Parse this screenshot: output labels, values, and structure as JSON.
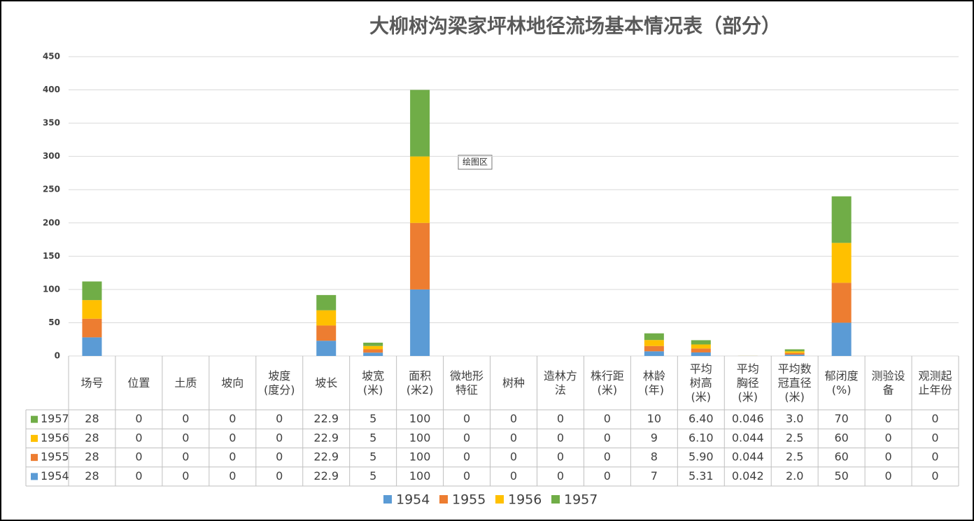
{
  "chart_data": {
    "type": "bar",
    "stacked": true,
    "title": "大柳树沟梁家坪林地径流场基本情况表（部分）",
    "annotation": "绘图区",
    "categories": [
      "场号",
      "位置",
      "土质",
      "坡向",
      "坡度\n(度分)",
      "坡长",
      "坡宽\n(米)",
      "面积\n(米2)",
      "微地形\n特征",
      "树种",
      "造林方\n法",
      "株行距\n(米)",
      "林龄\n(年)",
      "平均\n树高\n(米)",
      "平均\n胸径\n(米)",
      "平均数\n冠直径\n(米)",
      "郁闭度\n(%)",
      "测验设\n备",
      "观测起\n止年份"
    ],
    "series": [
      {
        "name": "1954",
        "color": "#5b9bd5",
        "values": [
          28,
          0,
          0,
          0,
          0,
          22.9,
          5,
          100,
          0,
          0,
          0,
          0,
          7,
          5.31,
          0.042,
          2,
          50,
          0,
          0
        ],
        "value_labels": [
          "28",
          "0",
          "0",
          "0",
          "0",
          "22.9",
          "5",
          "100",
          "0",
          "0",
          "0",
          "0",
          "7",
          "5.31",
          "0.042",
          "2.0",
          "50",
          "0",
          "0"
        ]
      },
      {
        "name": "1955",
        "color": "#ed7d31",
        "values": [
          28,
          0,
          0,
          0,
          0,
          22.9,
          5,
          100,
          0,
          0,
          0,
          0,
          8,
          5.9,
          0.044,
          2.5,
          60,
          0,
          0
        ],
        "value_labels": [
          "28",
          "0",
          "0",
          "0",
          "0",
          "22.9",
          "5",
          "100",
          "0",
          "0",
          "0",
          "0",
          "8",
          "5.90",
          "0.044",
          "2.5",
          "60",
          "0",
          "0"
        ]
      },
      {
        "name": "1956",
        "color": "#ffc000",
        "values": [
          28,
          0,
          0,
          0,
          0,
          22.9,
          5,
          100,
          0,
          0,
          0,
          0,
          9,
          6.1,
          0.044,
          2.5,
          60,
          0,
          0
        ],
        "value_labels": [
          "28",
          "0",
          "0",
          "0",
          "0",
          "22.9",
          "5",
          "100",
          "0",
          "0",
          "0",
          "0",
          "9",
          "6.10",
          "0.044",
          "2.5",
          "60",
          "0",
          "0"
        ]
      },
      {
        "name": "1957",
        "color": "#70ad47",
        "values": [
          28,
          0,
          0,
          0,
          0,
          22.9,
          5,
          100,
          0,
          0,
          0,
          0,
          10,
          6.4,
          0.046,
          3,
          70,
          0,
          0
        ],
        "value_labels": [
          "28",
          "0",
          "0",
          "0",
          "0",
          "22.9",
          "5",
          "100",
          "0",
          "0",
          "0",
          "0",
          "10",
          "6.40",
          "0.046",
          "3.0",
          "70",
          "0",
          "0"
        ]
      }
    ],
    "ylim": [
      0,
      450
    ],
    "yticks": [
      0,
      50,
      100,
      150,
      200,
      250,
      300,
      350,
      400,
      450
    ],
    "grid": true
  }
}
